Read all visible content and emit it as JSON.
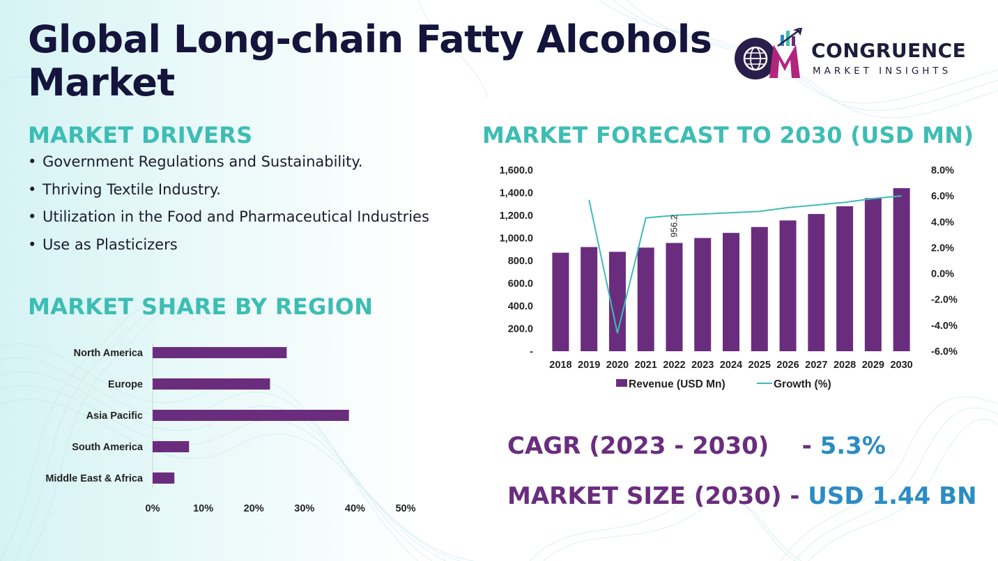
{
  "title": "Global Long-chain Fatty Alcohols Market",
  "logo": {
    "name": "CONGRUENCE",
    "tagline": "MARKET INSIGHTS"
  },
  "drivers": {
    "heading": "MARKET DRIVERS",
    "bullet": "•",
    "items": [
      "Government Regulations and Sustainability.",
      "Thriving Textile Industry.",
      "Utilization in the Food and Pharmaceutical Industries",
      "Use as Plasticizers"
    ]
  },
  "share_heading": "MARKET SHARE BY REGION",
  "forecast_heading": "MARKET FORECAST TO 2030 (USD MN)",
  "kpis": {
    "cagr_label": "CAGR (2023 - 2030)",
    "cagr_sep": "    - ",
    "cagr_value": "5.3%",
    "size_label": "MARKET SIZE (2030)",
    "size_sep": " - ",
    "size_value": "USD 1.44 BN"
  },
  "colors": {
    "bar": "#6a2d7e",
    "line": "#3dbdb4",
    "heading": "#3dbdb4",
    "kpi_value": "#2b8cc4"
  },
  "chart_data": [
    {
      "type": "bar",
      "orientation": "horizontal",
      "title": "MARKET SHARE BY REGION",
      "categories": [
        "North America",
        "Europe",
        "Asia Pacific",
        "South America",
        "Middle East & Africa"
      ],
      "values": [
        26.5,
        23.2,
        38.8,
        7.2,
        4.3
      ],
      "xlim": [
        0,
        50
      ],
      "xticks": [
        0,
        10,
        20,
        30,
        40,
        50
      ],
      "xtick_labels": [
        "0%",
        "10%",
        "20%",
        "30%",
        "40%",
        "50%"
      ]
    },
    {
      "type": "bar",
      "title": "MARKET FORECAST TO 2030 (USD MN)",
      "categories": [
        "2018",
        "2019",
        "2020",
        "2021",
        "2022",
        "2023",
        "2024",
        "2025",
        "2026",
        "2027",
        "2028",
        "2029",
        "2030"
      ],
      "series": [
        {
          "name": "Revenue (USD Mn)",
          "type": "bar",
          "axis": "left",
          "values": [
            870,
            920,
            878,
            915,
            956.2,
            1000,
            1045,
            1097,
            1155,
            1212,
            1280,
            1352,
            1440
          ]
        },
        {
          "name": "Growth (%)",
          "type": "line",
          "axis": "right",
          "values": [
            null,
            5.7,
            -4.6,
            4.3,
            4.5,
            4.6,
            4.7,
            4.8,
            5.1,
            5.3,
            5.5,
            5.8,
            6.0
          ]
        }
      ],
      "ylim_left": [
        0,
        1600
      ],
      "yticks_left": [
        0,
        200,
        400,
        600,
        800,
        1000,
        1200,
        1400,
        1600
      ],
      "ytick_labels_left": [
        "-",
        "200.0",
        "400.0",
        "600.0",
        "800.0",
        "1,000.0",
        "1,200.0",
        "1,400.0",
        "1,600.0"
      ],
      "ylim_right": [
        -6,
        8
      ],
      "yticks_right": [
        -6,
        -4,
        -2,
        0,
        2,
        4,
        6,
        8
      ],
      "ytick_labels_right": [
        "-6.0%",
        "-4.0%",
        "-2.0%",
        "0.0%",
        "2.0%",
        "4.0%",
        "6.0%",
        "8.0%"
      ],
      "data_labels": [
        {
          "category": "2022",
          "text": "956.2"
        }
      ],
      "legend": "bottom"
    }
  ]
}
